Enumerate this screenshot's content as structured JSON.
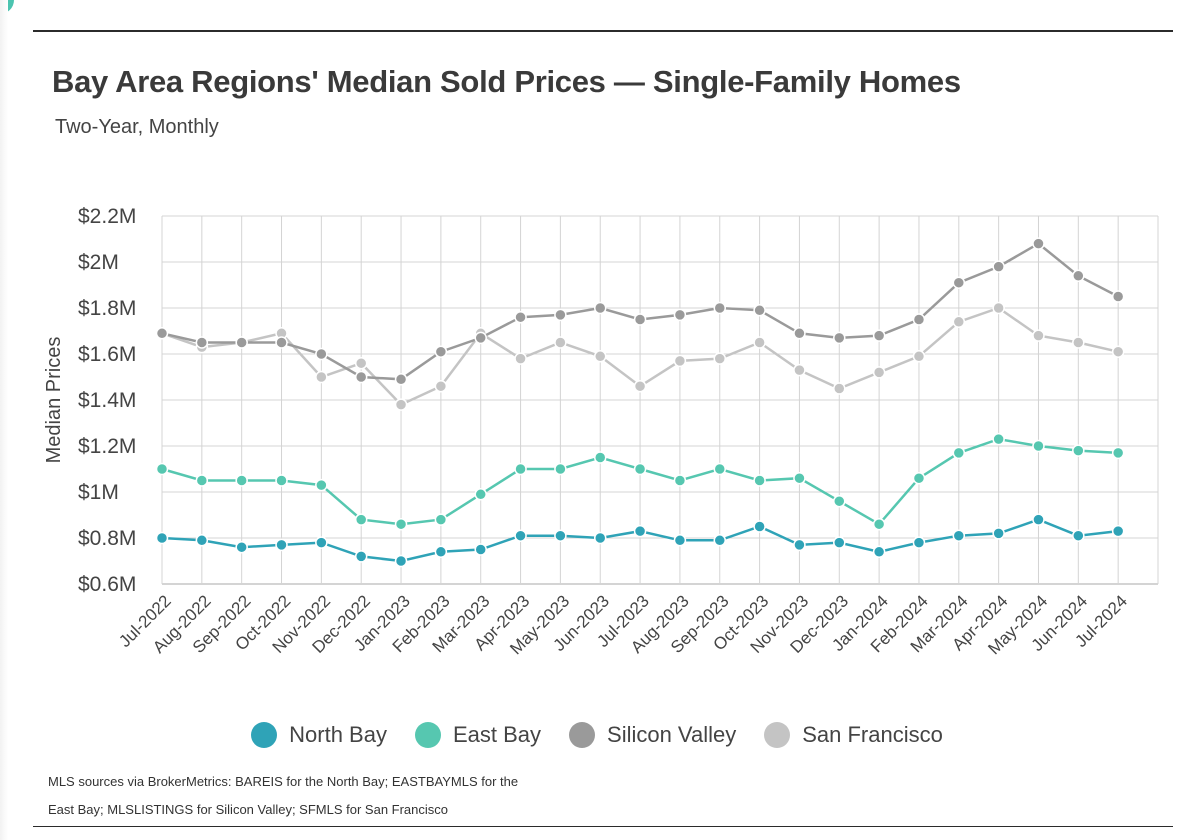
{
  "title": "Bay Area Regions' Median Sold Prices — Single-Family Homes",
  "subtitle": "Two-Year, Monthly",
  "source_note": "MLS sources via BrokerMetrics: BAREIS for the North Bay; EASTBAYMLS for the East Bay; MLSLISTINGS for Silicon Valley; SFMLS for San Francisco",
  "chart_data": {
    "type": "line",
    "title": "Bay Area Regions' Median Sold Prices — Single-Family Homes",
    "subtitle": "Two-Year, Monthly",
    "xlabel": "",
    "ylabel": "Median Prices",
    "ylim": [
      0.6,
      2.2
    ],
    "yticks": [
      0.6,
      0.8,
      1.0,
      1.2,
      1.4,
      1.6,
      1.8,
      2.0,
      2.2
    ],
    "ytick_labels": [
      "$0.6M",
      "$0.8M",
      "$1M",
      "$1.2M",
      "$1.4M",
      "$1.6M",
      "$1.8M",
      "$2M",
      "$2.2M"
    ],
    "grid": true,
    "legend_position": "bottom-center",
    "categories": [
      "Jul-2022",
      "Aug-2022",
      "Sep-2022",
      "Oct-2022",
      "Nov-2022",
      "Dec-2022",
      "Jan-2023",
      "Feb-2023",
      "Mar-2023",
      "Apr-2023",
      "May-2023",
      "Jun-2023",
      "Jul-2023",
      "Aug-2023",
      "Sep-2023",
      "Oct-2023",
      "Nov-2023",
      "Dec-2023",
      "Jan-2024",
      "Feb-2024",
      "Mar-2024",
      "Apr-2024",
      "May-2024",
      "Jun-2024",
      "Jul-2024"
    ],
    "series": [
      {
        "name": "San Francisco",
        "color": "#c4c4c4",
        "values": [
          1.69,
          1.63,
          1.65,
          1.69,
          1.5,
          1.56,
          1.38,
          1.46,
          1.69,
          1.58,
          1.65,
          1.59,
          1.46,
          1.57,
          1.58,
          1.65,
          1.53,
          1.45,
          1.52,
          1.59,
          1.74,
          1.8,
          1.68,
          1.65,
          1.61
        ]
      },
      {
        "name": "Silicon Valley",
        "color": "#9a9a9a",
        "values": [
          1.69,
          1.65,
          1.65,
          1.65,
          1.6,
          1.5,
          1.49,
          1.61,
          1.67,
          1.76,
          1.77,
          1.8,
          1.75,
          1.77,
          1.8,
          1.79,
          1.69,
          1.67,
          1.68,
          1.75,
          1.91,
          1.98,
          2.08,
          1.94,
          1.85
        ]
      },
      {
        "name": "East Bay",
        "color": "#56c7b0",
        "values": [
          1.1,
          1.05,
          1.05,
          1.05,
          1.03,
          0.88,
          0.86,
          0.88,
          0.99,
          1.1,
          1.1,
          1.15,
          1.1,
          1.05,
          1.1,
          1.05,
          1.06,
          0.96,
          0.86,
          1.06,
          1.17,
          1.23,
          1.2,
          1.18,
          1.17
        ]
      },
      {
        "name": "North Bay",
        "color": "#2fa3b7",
        "values": [
          0.8,
          0.79,
          0.76,
          0.77,
          0.78,
          0.72,
          0.7,
          0.74,
          0.75,
          0.81,
          0.81,
          0.8,
          0.83,
          0.79,
          0.79,
          0.85,
          0.77,
          0.78,
          0.74,
          0.78,
          0.81,
          0.82,
          0.88,
          0.81,
          0.83
        ]
      }
    ],
    "legend": [
      {
        "name": "North Bay",
        "color": "#2fa3b7"
      },
      {
        "name": "East Bay",
        "color": "#56c7b0"
      },
      {
        "name": "Silicon Valley",
        "color": "#9a9a9a"
      },
      {
        "name": "San Francisco",
        "color": "#c4c4c4"
      }
    ]
  }
}
